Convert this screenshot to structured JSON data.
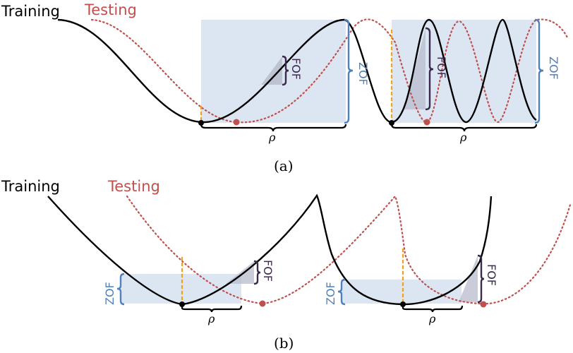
{
  "panel_a": {
    "training_label": "Training",
    "testing_label": "Testing",
    "caption": "(a)",
    "left_scene": {
      "zof_label": "ZOF",
      "fof_label": "FOF",
      "rho_label": "ρ"
    },
    "right_scene": {
      "zof_label": "ZOF",
      "fof_label": "FOF",
      "rho_label": "ρ"
    }
  },
  "panel_b": {
    "training_label": "Training",
    "testing_label": "Testing",
    "caption": "(b)",
    "left_scene": {
      "zof_label": "ZOF",
      "fof_label": "FOF",
      "rho_label": "ρ"
    },
    "right_scene": {
      "zof_label": "ZOF",
      "fof_label": "FOF",
      "rho_label": "ρ"
    }
  },
  "colors": {
    "training_curve": "#000000",
    "testing_curve": "#c0504d",
    "zof_region": "#dce6f2",
    "zof_bracket": "#4f81bd",
    "fof_bracket": "#3b2a4d",
    "fof_region": "#b8bccc",
    "perturbation_marker": "#f0a020",
    "minimum_dot": "#000000",
    "testing_dot": "#c0504d"
  }
}
